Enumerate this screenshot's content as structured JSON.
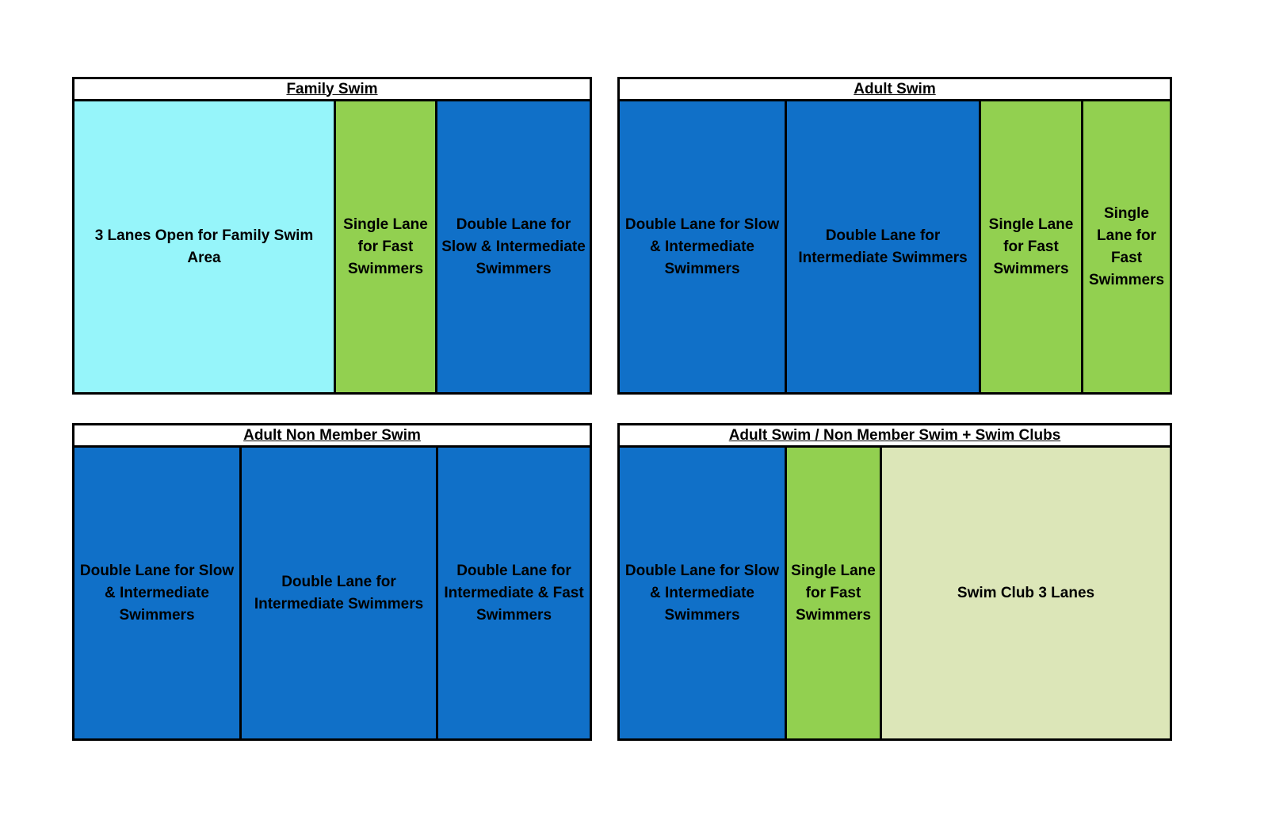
{
  "colors": {
    "family_area": "#96F5FA",
    "fast_lane": "#92D050",
    "double_lane": "#1070C8",
    "swim_club": "#DCE6B8",
    "border": "#000000"
  },
  "panels": [
    {
      "title": "Family Swim",
      "lanes": [
        {
          "label": "3 Lanes Open for Family Swim Area",
          "color": "#96F5FA"
        },
        {
          "label": "Single Lane for Fast Swimmers",
          "color": "#92D050"
        },
        {
          "label": "Double Lane for Slow & Intermediate Swimmers",
          "color": "#1070C8"
        }
      ]
    },
    {
      "title": "Adult Swim",
      "lanes": [
        {
          "label": "Double Lane for Slow & Intermediate Swimmers",
          "color": "#1070C8"
        },
        {
          "label": "Double Lane for Intermediate Swimmers",
          "color": "#1070C8"
        },
        {
          "label": "Single Lane for Fast Swimmers",
          "color": "#92D050"
        },
        {
          "label": "Single Lane for Fast Swimmers",
          "color": "#92D050"
        }
      ]
    },
    {
      "title": "Adult Non Member Swim",
      "lanes": [
        {
          "label": "Double Lane for Slow & Intermediate Swimmers",
          "color": "#1070C8"
        },
        {
          "label": "Double Lane for Intermediate Swimmers",
          "color": "#1070C8"
        },
        {
          "label": "Double Lane for Intermediate & Fast Swimmers",
          "color": "#1070C8"
        }
      ]
    },
    {
      "title": "Adult Swim / Non Member Swim + Swim Clubs",
      "lanes": [
        {
          "label": "Double Lane for Slow & Intermediate Swimmers",
          "color": "#1070C8"
        },
        {
          "label": "Single Lane for Fast Swimmers",
          "color": "#92D050"
        },
        {
          "label": "Swim Club 3 Lanes",
          "color": "#DCE6B8"
        }
      ]
    }
  ]
}
